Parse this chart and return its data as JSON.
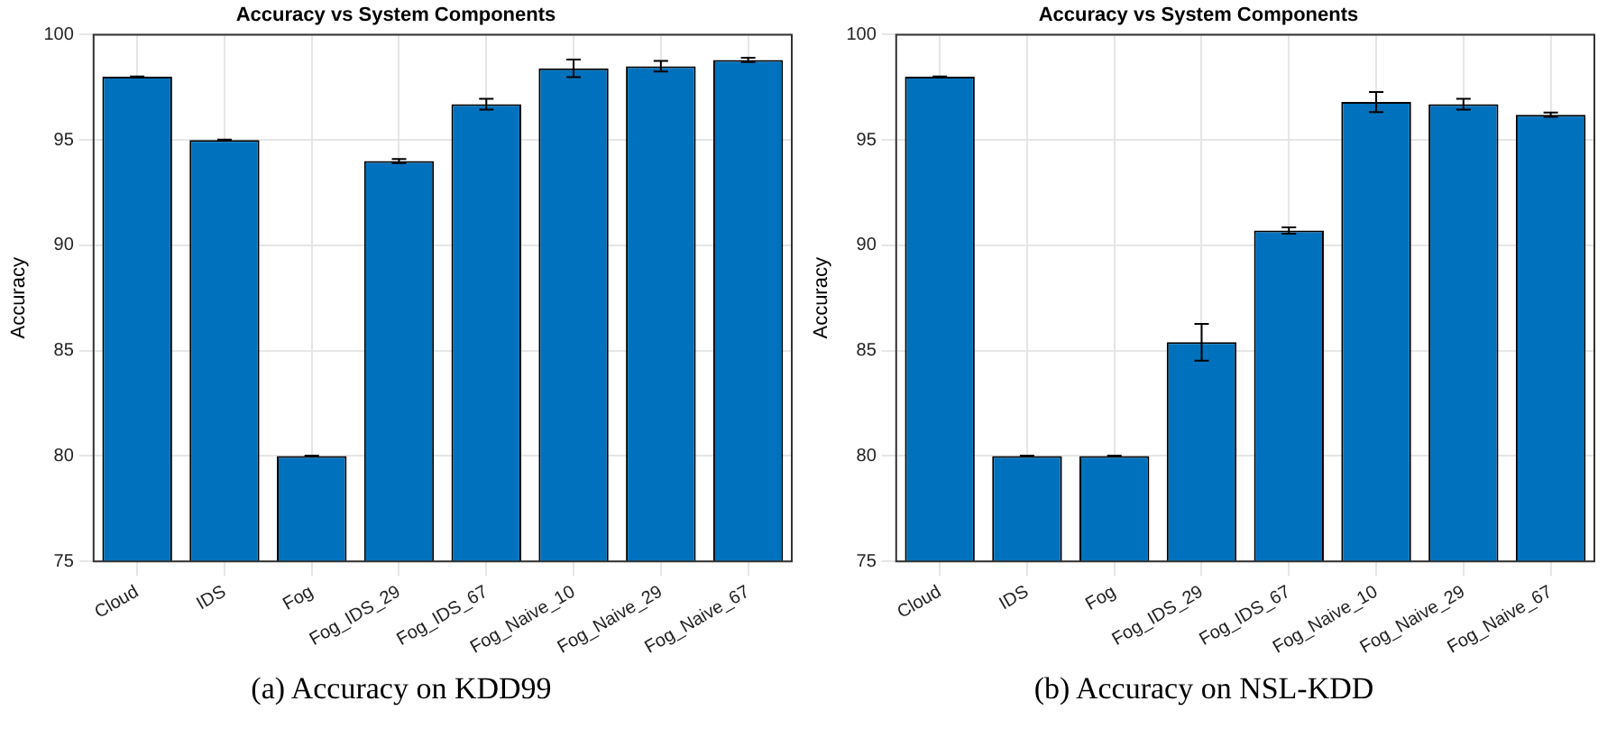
{
  "chart_data": [
    {
      "type": "bar",
      "title": "Accuracy vs System Components",
      "ylabel": "Accuracy",
      "categories": [
        "Cloud",
        "IDS",
        "Fog",
        "Fog_IDS_29",
        "Fog_IDS_67",
        "Fog_Naive_10",
        "Fog_Naive_29",
        "Fog_Naive_67"
      ],
      "series": [
        {
          "color": "#0072bd",
          "values": [
            98,
            95,
            80,
            94,
            96.7,
            98.4,
            98.5,
            98.8
          ],
          "errors": [
            0.02,
            0.02,
            0.02,
            0.1,
            0.26,
            0.42,
            0.25,
            0.1
          ]
        }
      ],
      "ylim": [
        75,
        100
      ],
      "yticks": [
        75,
        80,
        85,
        90,
        95,
        100
      ],
      "grid": true,
      "legend": false,
      "annotations": [
        "(a) Accuracy on KDD99"
      ]
    },
    {
      "type": "bar",
      "title": "Accuracy vs System Components",
      "ylabel": "Accuracy",
      "categories": [
        "Cloud",
        "IDS",
        "Fog",
        "Fog_IDS_29",
        "Fog_IDS_67",
        "Fog_Naive_10",
        "Fog_Naive_29",
        "Fog_Naive_67"
      ],
      "series": [
        {
          "color": "#0072bd",
          "values": [
            98,
            80,
            80,
            85.4,
            90.7,
            96.8,
            96.7,
            96.2
          ],
          "errors": [
            0.02,
            0.02,
            0.02,
            0.87,
            0.15,
            0.48,
            0.26,
            0.1
          ]
        }
      ],
      "ylim": [
        75,
        100
      ],
      "yticks": [
        75,
        80,
        85,
        90,
        95,
        100
      ],
      "grid": true,
      "legend": false,
      "annotations": [
        "(b) Accuracy on NSL-KDD"
      ]
    }
  ]
}
